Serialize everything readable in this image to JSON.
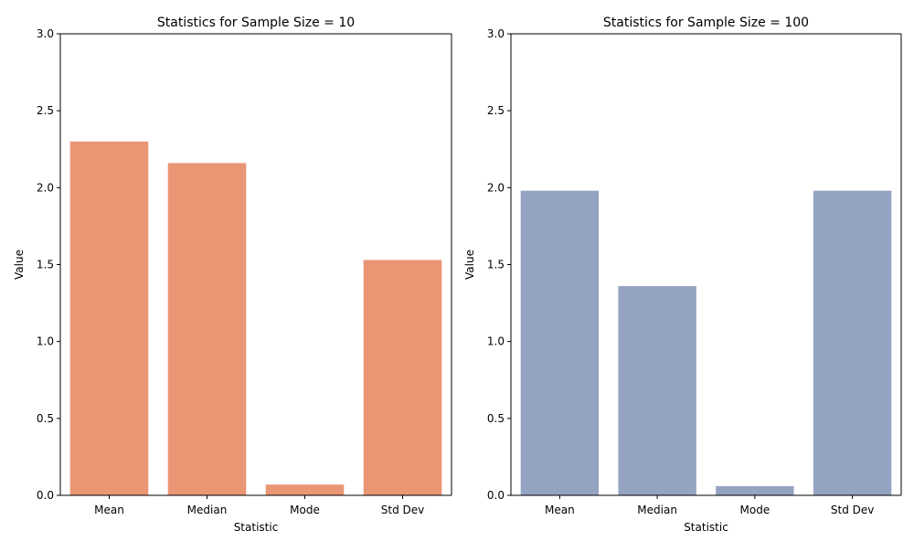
{
  "chart_data": [
    {
      "type": "bar",
      "title": "Statistics for Sample Size = 10",
      "xlabel": "Statistic",
      "ylabel": "Value",
      "categories": [
        "Mean",
        "Median",
        "Mode",
        "Std Dev"
      ],
      "values": [
        2.3,
        2.16,
        0.07,
        1.53
      ],
      "ylim": [
        0,
        3
      ],
      "yticks": [
        "0.0",
        "0.5",
        "1.0",
        "1.5",
        "2.0",
        "2.5",
        "3.0"
      ],
      "color": "#e99675"
    },
    {
      "type": "bar",
      "title": "Statistics for Sample Size = 100",
      "xlabel": "Statistic",
      "ylabel": "Value",
      "categories": [
        "Mean",
        "Median",
        "Mode",
        "Std Dev"
      ],
      "values": [
        1.98,
        1.36,
        0.06,
        1.98
      ],
      "ylim": [
        0,
        3
      ],
      "yticks": [
        "0.0",
        "0.5",
        "1.0",
        "1.5",
        "2.0",
        "2.5",
        "3.0"
      ],
      "color": "#95a3c3"
    }
  ]
}
